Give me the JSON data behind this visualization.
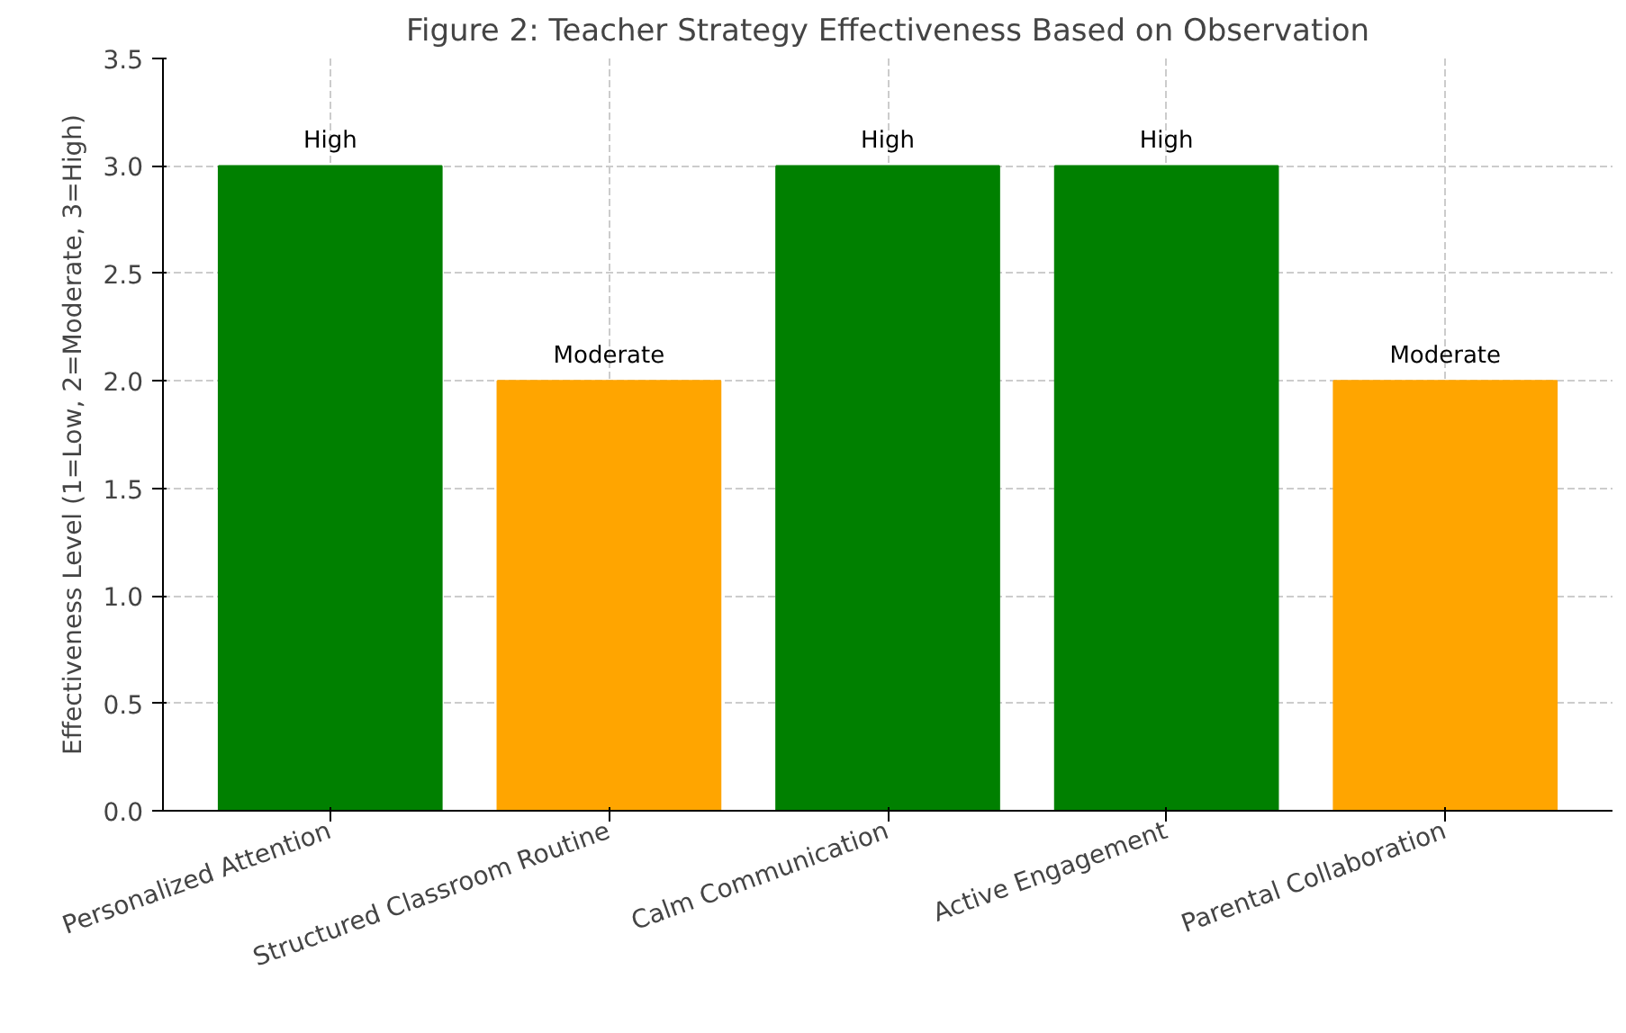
{
  "chart_data": {
    "type": "bar",
    "title": "Figure 2: Teacher Strategy Effectiveness Based on Observation",
    "ylabel": "Effectiveness Level (1=Low, 2=Moderate, 3=High)",
    "categories": [
      "Personalized Attention",
      "Structured Classroom Routine",
      "Calm Communication",
      "Active Engagement",
      "Parental Collaboration"
    ],
    "values": [
      3,
      2,
      3,
      3,
      2
    ],
    "colors": [
      "#008000",
      "#ffa500",
      "#008000",
      "#008000",
      "#ffa500"
    ],
    "value_labels": [
      "High",
      "Moderate",
      "High",
      "High",
      "Moderate"
    ],
    "ylim": [
      0,
      3.5
    ],
    "yticks": [
      {
        "value": 0,
        "label": "0.0"
      },
      0.5,
      {
        "value": 1,
        "label": "1.0"
      },
      1.5,
      {
        "value": 2,
        "label": "2.0"
      },
      2.5,
      {
        "value": 3,
        "label": "3.0"
      },
      3.5
    ],
    "grid": true
  }
}
